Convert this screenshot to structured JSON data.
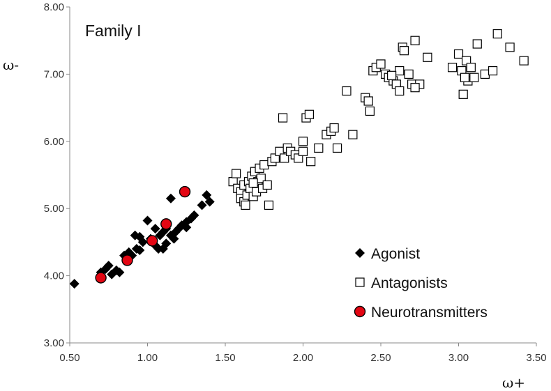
{
  "chart_data": {
    "type": "scatter",
    "title": "Family I",
    "xlabel": "ω+",
    "ylabel": "ω-",
    "xlim": [
      0.5,
      3.5
    ],
    "ylim": [
      3.0,
      8.0
    ],
    "x_ticks": [
      "0.50",
      "1.00",
      "1.50",
      "2.00",
      "2.50",
      "3.00",
      "3.50"
    ],
    "y_ticks": [
      "3.00",
      "4.00",
      "5.00",
      "6.00",
      "7.00",
      "8.00"
    ],
    "grid": false,
    "legend_position": "bottom-right",
    "series": [
      {
        "name": "Agonist",
        "marker": "diamond",
        "color": "#000000",
        "points": [
          [
            0.53,
            3.88
          ],
          [
            0.7,
            4.05
          ],
          [
            0.73,
            4.1
          ],
          [
            0.75,
            4.15
          ],
          [
            0.77,
            4.02
          ],
          [
            0.8,
            4.08
          ],
          [
            0.82,
            4.05
          ],
          [
            0.85,
            4.3
          ],
          [
            0.88,
            4.35
          ],
          [
            0.9,
            4.3
          ],
          [
            0.93,
            4.4
          ],
          [
            0.95,
            4.38
          ],
          [
            0.97,
            4.5
          ],
          [
            1.0,
            4.82
          ],
          [
            1.02,
            4.55
          ],
          [
            1.03,
            4.5
          ],
          [
            1.05,
            4.45
          ],
          [
            1.07,
            4.4
          ],
          [
            1.08,
            4.6
          ],
          [
            1.1,
            4.65
          ],
          [
            1.12,
            4.7
          ],
          [
            1.15,
            4.6
          ],
          [
            1.17,
            4.55
          ],
          [
            1.2,
            4.7
          ],
          [
            1.22,
            4.75
          ],
          [
            1.25,
            4.8
          ],
          [
            1.28,
            4.85
          ],
          [
            1.3,
            4.9
          ],
          [
            1.15,
            5.15
          ],
          [
            1.35,
            5.05
          ],
          [
            1.38,
            5.2
          ],
          [
            1.4,
            5.1
          ],
          [
            0.95,
            4.58
          ],
          [
            1.05,
            4.7
          ],
          [
            1.12,
            4.48
          ],
          [
            1.18,
            4.65
          ],
          [
            1.25,
            4.72
          ],
          [
            0.87,
            4.22
          ],
          [
            0.92,
            4.6
          ],
          [
            1.1,
            4.4
          ]
        ]
      },
      {
        "name": "Antagonists",
        "marker": "square-open",
        "color": "#000000",
        "points": [
          [
            1.55,
            5.4
          ],
          [
            1.57,
            5.52
          ],
          [
            1.58,
            5.3
          ],
          [
            1.6,
            5.25
          ],
          [
            1.6,
            5.15
          ],
          [
            1.62,
            5.35
          ],
          [
            1.62,
            5.1
          ],
          [
            1.64,
            5.2
          ],
          [
            1.65,
            5.4
          ],
          [
            1.66,
            5.3
          ],
          [
            1.67,
            5.48
          ],
          [
            1.68,
            5.18
          ],
          [
            1.69,
            5.55
          ],
          [
            1.7,
            5.25
          ],
          [
            1.71,
            5.4
          ],
          [
            1.72,
            5.6
          ],
          [
            1.73,
            5.45
          ],
          [
            1.74,
            5.3
          ],
          [
            1.75,
            5.65
          ],
          [
            1.77,
            5.35
          ],
          [
            1.8,
            5.7
          ],
          [
            1.82,
            5.75
          ],
          [
            1.85,
            5.85
          ],
          [
            1.87,
            6.35
          ],
          [
            1.88,
            5.75
          ],
          [
            1.9,
            5.9
          ],
          [
            1.92,
            5.85
          ],
          [
            1.95,
            5.8
          ],
          [
            1.97,
            5.75
          ],
          [
            2.0,
            5.85
          ],
          [
            2.02,
            6.35
          ],
          [
            2.04,
            6.4
          ],
          [
            2.05,
            5.7
          ],
          [
            2.1,
            5.9
          ],
          [
            2.15,
            6.1
          ],
          [
            2.18,
            6.15
          ],
          [
            2.2,
            6.2
          ],
          [
            2.22,
            5.9
          ],
          [
            2.28,
            6.75
          ],
          [
            2.32,
            6.1
          ],
          [
            2.4,
            6.65
          ],
          [
            2.42,
            6.6
          ],
          [
            2.43,
            6.45
          ],
          [
            2.45,
            7.05
          ],
          [
            2.47,
            7.1
          ],
          [
            2.5,
            7.15
          ],
          [
            2.53,
            7.0
          ],
          [
            2.55,
            6.95
          ],
          [
            2.58,
            6.9
          ],
          [
            2.6,
            6.85
          ],
          [
            2.62,
            6.75
          ],
          [
            2.64,
            7.4
          ],
          [
            2.65,
            7.35
          ],
          [
            2.68,
            7.0
          ],
          [
            2.7,
            6.85
          ],
          [
            2.72,
            7.5
          ],
          [
            2.75,
            6.85
          ],
          [
            2.8,
            7.25
          ],
          [
            2.96,
            7.1
          ],
          [
            3.0,
            7.3
          ],
          [
            3.02,
            7.05
          ],
          [
            3.03,
            6.7
          ],
          [
            3.05,
            7.2
          ],
          [
            3.06,
            6.9
          ],
          [
            3.08,
            7.1
          ],
          [
            3.1,
            6.95
          ],
          [
            3.12,
            7.45
          ],
          [
            3.17,
            7.0
          ],
          [
            3.22,
            7.05
          ],
          [
            3.25,
            7.6
          ],
          [
            3.33,
            7.4
          ],
          [
            3.42,
            7.2
          ],
          [
            3.04,
            6.95
          ],
          [
            2.72,
            6.8
          ],
          [
            1.63,
            5.05
          ],
          [
            1.78,
            5.05
          ],
          [
            1.68,
            5.38
          ],
          [
            2.0,
            6.0
          ],
          [
            2.62,
            7.05
          ],
          [
            2.57,
            6.98
          ]
        ]
      },
      {
        "name": "Neurotransmitters",
        "marker": "circle",
        "color": "#e30613",
        "points": [
          [
            0.7,
            3.97
          ],
          [
            0.87,
            4.23
          ],
          [
            1.03,
            4.52
          ],
          [
            1.12,
            4.77
          ],
          [
            1.24,
            5.25
          ]
        ]
      }
    ]
  }
}
